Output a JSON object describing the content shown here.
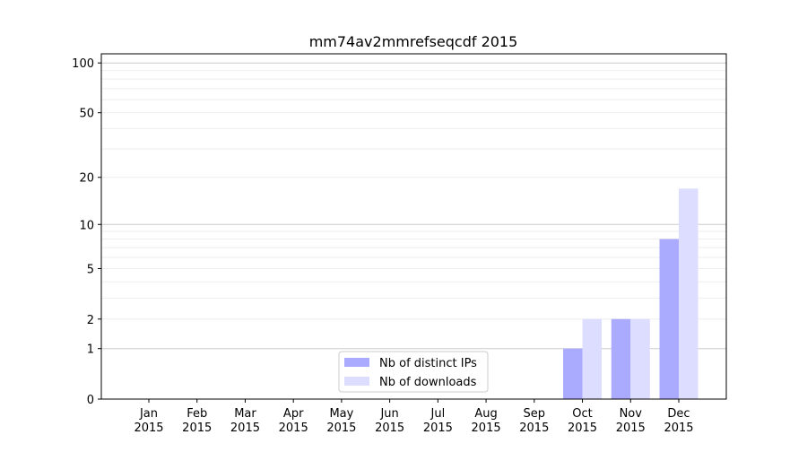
{
  "chart_data": {
    "type": "bar",
    "title": "mm74av2mmrefseqcdf 2015",
    "xlabel": "",
    "ylabel": "",
    "yscale": "log(1+y)",
    "ylim": [
      0,
      113
    ],
    "yticks": [
      0,
      1,
      2,
      5,
      10,
      20,
      50,
      100
    ],
    "grid": true,
    "legend_position": "lower-center",
    "categories": [
      "Jan\n2015",
      "Feb\n2015",
      "Mar\n2015",
      "Apr\n2015",
      "May\n2015",
      "Jun\n2015",
      "Jul\n2015",
      "Aug\n2015",
      "Sep\n2015",
      "Oct\n2015",
      "Nov\n2015",
      "Dec\n2015"
    ],
    "series": [
      {
        "name": "Nb of distinct IPs",
        "color": "#aaaaff",
        "values": [
          0,
          0,
          0,
          0,
          0,
          0,
          0,
          0,
          0,
          1,
          2,
          8
        ]
      },
      {
        "name": "Nb of downloads",
        "color": "#ddddff",
        "values": [
          0,
          0,
          0,
          0,
          0,
          0,
          0,
          0,
          0,
          2,
          2,
          17
        ]
      }
    ]
  }
}
